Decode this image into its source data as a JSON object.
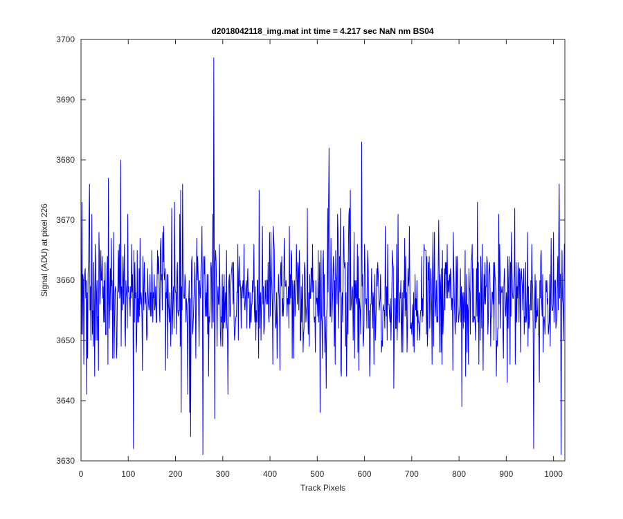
{
  "chart_data": {
    "type": "line",
    "title": "d2018042118_img.mat int time = 4.217 sec  NaN nm BS04",
    "xlabel": "Track Pixels",
    "ylabel": "Signal (ADU) at pixel 226",
    "xlim": [
      0,
      1024
    ],
    "ylim": [
      3630,
      3700
    ],
    "xticks": [
      0,
      100,
      200,
      300,
      400,
      500,
      600,
      700,
      800,
      900,
      1000
    ],
    "yticks": [
      3630,
      3640,
      3650,
      3660,
      3670,
      3680,
      3690,
      3700
    ],
    "grid": false,
    "line_color": "#0000ff",
    "series": [
      {
        "x_start": 1,
        "x_step": 1,
        "mean": 3657,
        "std": 6,
        "count": 1024,
        "notable_points": [
          {
            "x": 2,
            "y": 3673
          },
          {
            "x": 12,
            "y": 3641
          },
          {
            "x": 18,
            "y": 3676
          },
          {
            "x": 58,
            "y": 3677
          },
          {
            "x": 84,
            "y": 3680
          },
          {
            "x": 111,
            "y": 3632
          },
          {
            "x": 215,
            "y": 3676
          },
          {
            "x": 232,
            "y": 3634
          },
          {
            "x": 258,
            "y": 3631
          },
          {
            "x": 281,
            "y": 3697
          },
          {
            "x": 283,
            "y": 3637
          },
          {
            "x": 525,
            "y": 3682
          },
          {
            "x": 594,
            "y": 3683
          },
          {
            "x": 958,
            "y": 3632
          },
          {
            "x": 1012,
            "y": 3676
          },
          {
            "x": 1016,
            "y": 3631
          }
        ]
      }
    ]
  }
}
